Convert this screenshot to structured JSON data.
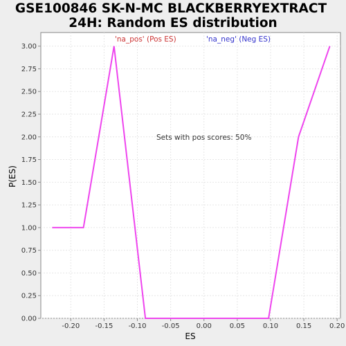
{
  "chart_data": {
    "type": "line",
    "title_lines": [
      "GSE100846 SK-N-MC BLACKBERRYEXTRACT",
      "24H: Random ES distribution"
    ],
    "xlabel": "ES",
    "ylabel": "P(ES)",
    "xlim": [
      -0.245,
      0.205
    ],
    "ylim": [
      0.0,
      3.15
    ],
    "x_ticks": [
      -0.2,
      -0.15,
      -0.1,
      -0.05,
      0.0,
      0.05,
      0.1,
      0.15,
      0.2
    ],
    "x_tick_labels": [
      "-0.20",
      "-0.15",
      "-0.10",
      "-0.05",
      "0.00",
      "0.05",
      "0.10",
      "0.15",
      "0.20"
    ],
    "y_ticks": [
      0.0,
      0.25,
      0.5,
      0.75,
      1.0,
      1.25,
      1.5,
      1.75,
      2.0,
      2.25,
      2.5,
      2.75,
      3.0
    ],
    "y_tick_labels": [
      "0.00",
      "0.25",
      "0.50",
      "0.75",
      "1.00",
      "1.25",
      "1.50",
      "1.75",
      "2.00",
      "2.25",
      "2.50",
      "2.75",
      "3.00"
    ],
    "grid": true,
    "legend": [
      {
        "label": "'na_pos' (Pos ES)",
        "color": "#cc3333"
      },
      {
        "label": "'na_neg' (Neg ES)",
        "color": "#3333cc"
      }
    ],
    "annotation": "Sets with pos scores: 50%",
    "series": [
      {
        "color": "#ee44ee",
        "x": [
          -0.228,
          -0.181,
          -0.135,
          -0.088,
          0.097,
          0.142,
          0.189
        ],
        "y": [
          1.0,
          1.0,
          3.0,
          0.0,
          0.0,
          2.0,
          3.0
        ]
      }
    ]
  }
}
